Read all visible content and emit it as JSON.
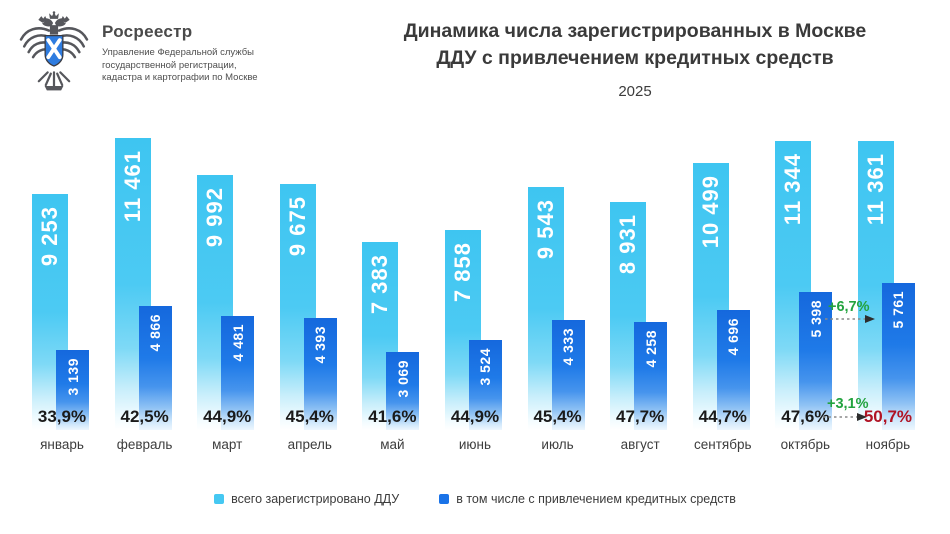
{
  "header": {
    "org_name": "Росреестр",
    "org_sub_lines": [
      "Управление Федеральной службы",
      "государственной регистрации,",
      "кадастра и картографии по Москве"
    ],
    "title_lines": [
      "Динамика числа зарегистрированных в Москве",
      "ДДУ с привлечением кредитных средств"
    ],
    "year": "2025"
  },
  "colors": {
    "bar_light": "#45c8f2",
    "bar_dark": "#1a73e8",
    "accent_green": "#23a33f",
    "accent_red": "#b01324",
    "arrow_gray": "#8a8a8a"
  },
  "chart_data": {
    "type": "bar",
    "title": "Динамика числа зарегистрированных в Москве ДДУ с привлечением кредитных средств",
    "subtitle": "2025",
    "categories": [
      "январь",
      "февраль",
      "март",
      "апрель",
      "май",
      "июнь",
      "июль",
      "август",
      "сентябрь",
      "октябрь",
      "ноябрь"
    ],
    "series": [
      {
        "name": "всего зарегистрировано ДДУ",
        "color": "#45c8f2",
        "values": [
          9253,
          11461,
          9992,
          9675,
          7383,
          7858,
          9543,
          8931,
          10499,
          11344,
          11361
        ],
        "labels": [
          "9 253",
          "11 461",
          "9 992",
          "9 675",
          "7 383",
          "7 858",
          "9 543",
          "8 931",
          "10 499",
          "11 344",
          "11 361"
        ]
      },
      {
        "name": "в том числе с привлечением кредитных средств",
        "color": "#1a73e8",
        "values": [
          3139,
          4866,
          4481,
          4393,
          3069,
          3524,
          4333,
          4258,
          4696,
          5398,
          5761
        ],
        "labels": [
          "3 139",
          "4 866",
          "4 481",
          "4 393",
          "3 069",
          "3 524",
          "4 333",
          "4 258",
          "4 696",
          "5 398",
          "5 761"
        ]
      }
    ],
    "share_labels": [
      "33,9%",
      "42,5%",
      "44,9%",
      "45,4%",
      "41,6%",
      "44,9%",
      "45,4%",
      "47,7%",
      "44,7%",
      "47,6%",
      "50,7%"
    ],
    "highlight_last_share": true,
    "annotations": [
      {
        "text": "+6,7%",
        "target": "credit-bar-november"
      },
      {
        "text": "+3,1%",
        "target": "share-percent-november"
      }
    ],
    "ylim": [
      0,
      11461
    ],
    "grid": false,
    "legend_position": "bottom"
  }
}
